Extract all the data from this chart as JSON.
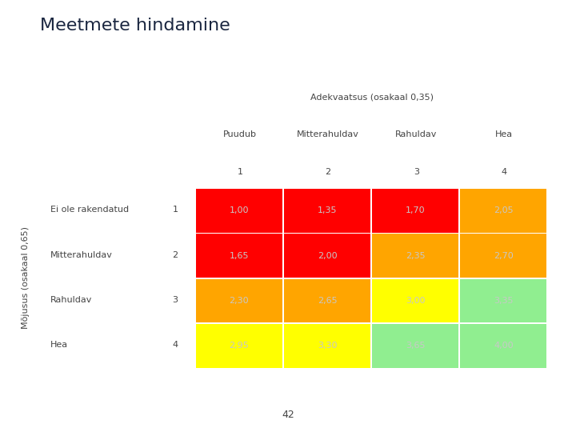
{
  "title": "Meetmete hindamine",
  "col_header_top": "Adekvaatsus (osakaal 0,35)",
  "col_headers": [
    "Puudub",
    "Mitterahuldav",
    "Rahuldav",
    "Hea"
  ],
  "col_numbers": [
    "1",
    "2",
    "3",
    "4"
  ],
  "row_header_top": "Mõjusus (osakaal 0,65)",
  "row_headers": [
    "Ei ole rakendatud",
    "Mitterahuldav",
    "Rahuldav",
    "Hea"
  ],
  "row_numbers": [
    "1",
    "2",
    "3",
    "4"
  ],
  "values": [
    [
      "1,00",
      "1,35",
      "1,70",
      "2,05"
    ],
    [
      "1,65",
      "2,00",
      "2,35",
      "2,70"
    ],
    [
      "2,30",
      "2,65",
      "3,00",
      "3,35"
    ],
    [
      "2,95",
      "3,30",
      "3,65",
      "4,00"
    ]
  ],
  "colors": [
    [
      "#FF0000",
      "#FF0000",
      "#FF0000",
      "#FFA500"
    ],
    [
      "#FF0000",
      "#FF0000",
      "#FFA500",
      "#FFA500"
    ],
    [
      "#FFA500",
      "#FFA500",
      "#FFFF00",
      "#90EE90"
    ],
    [
      "#FFFF00",
      "#FFFF00",
      "#90EE90",
      "#90EE90"
    ]
  ],
  "text_colors": [
    [
      "#C8C8C8",
      "#C8C8C8",
      "#C8C8C8",
      "#C8C8C8"
    ],
    [
      "#C8C8C8",
      "#C8C8C8",
      "#C8C8C8",
      "#C8C8C8"
    ],
    [
      "#C8C8C8",
      "#C8C8C8",
      "#C8C8C8",
      "#C8C8C8"
    ],
    [
      "#C8C8C8",
      "#C8C8C8",
      "#C8C8C8",
      "#C8C8C8"
    ]
  ],
  "bg_color": "#CBCBCB",
  "title_color": "#1a2640",
  "header_color": "#444444",
  "title_fontsize": 16,
  "header_fontsize": 8,
  "cell_fontsize": 8,
  "number_fontsize": 8,
  "page_number": "42"
}
